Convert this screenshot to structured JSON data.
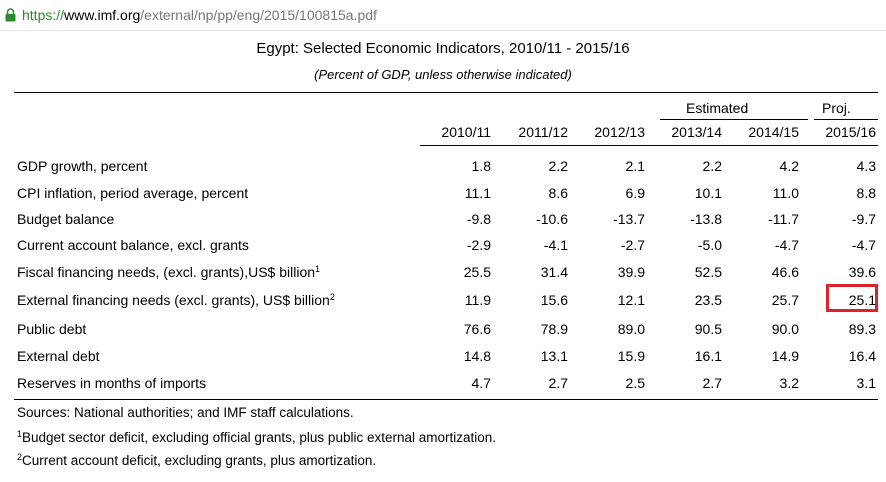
{
  "browser": {
    "url_scheme": "https://",
    "url_host": "www.imf.org",
    "url_path": "/external/np/pp/eng/2015/100815a.pdf"
  },
  "table": {
    "title": "Egypt: Selected Economic Indicators, 2010/11 - 2015/16",
    "subtitle": "(Percent of GDP, unless otherwise indicated)",
    "group_estimated": "Estimated",
    "group_proj": "Proj.",
    "years": [
      "2010/11",
      "2011/12",
      "2012/13",
      "2013/14",
      "2014/15",
      "2015/16"
    ],
    "rows": [
      {
        "label": "GDP growth, percent",
        "sup": "",
        "values": [
          "1.8",
          "2.2",
          "2.1",
          "2.2",
          "4.2",
          "4.3"
        ]
      },
      {
        "label": "CPI inflation, period average, percent",
        "sup": "",
        "values": [
          "11.1",
          "8.6",
          "6.9",
          "10.1",
          "11.0",
          "8.8"
        ]
      },
      {
        "label": "Budget balance",
        "sup": "",
        "values": [
          "-9.8",
          "-10.6",
          "-13.7",
          "-13.8",
          "-11.7",
          "-9.7"
        ]
      },
      {
        "label": "Current account balance, excl. grants",
        "sup": "",
        "values": [
          "-2.9",
          "-4.1",
          "-2.7",
          "-5.0",
          "-4.7",
          "-4.7"
        ]
      },
      {
        "label": "Fiscal financing needs, (excl. grants),US$ billion",
        "sup": "1",
        "values": [
          "25.5",
          "31.4",
          "39.9",
          "52.5",
          "46.6",
          "39.6"
        ]
      },
      {
        "label": "External financing needs (excl. grants), US$ billion",
        "sup": "2",
        "values": [
          "11.9",
          "15.6",
          "12.1",
          "23.5",
          "25.7",
          "25.1"
        ]
      },
      {
        "label": "Public debt",
        "sup": "",
        "values": [
          "76.6",
          "78.9",
          "89.0",
          "90.5",
          "90.0",
          "89.3"
        ]
      },
      {
        "label": "External debt",
        "sup": "",
        "values": [
          "14.8",
          "13.1",
          "15.9",
          "16.1",
          "14.9",
          "16.4"
        ]
      },
      {
        "label": "Reserves in months of imports",
        "sup": "",
        "values": [
          "4.7",
          "2.7",
          "2.5",
          "2.7",
          "3.2",
          "3.1"
        ]
      }
    ],
    "highlight_color": "#d9232d"
  },
  "notes": {
    "sources": "Sources: National authorities; and IMF staff calculations.",
    "note1_mark": "1",
    "note1": "Budget sector deficit, excluding official grants, plus public external amortization.",
    "note2_mark": "2",
    "note2": "Current account deficit, excluding grants, plus amortization."
  }
}
